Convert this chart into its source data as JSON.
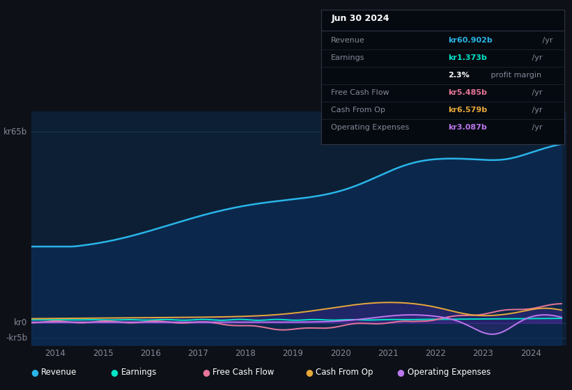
{
  "bg_color": "#0d1117",
  "chart_bg": "#0d1f35",
  "ylabel_top": "kr65b",
  "ylabel_zero": "kr0",
  "ylabel_neg": "-kr5b",
  "x_min": 2013.5,
  "x_max": 2024.75,
  "y_min": -7.5,
  "y_max": 72,
  "x_ticks": [
    2014,
    2015,
    2016,
    2017,
    2018,
    2019,
    2020,
    2021,
    2022,
    2023,
    2024
  ],
  "legend_items": [
    {
      "label": "Revenue",
      "color": "#29b5e8"
    },
    {
      "label": "Earnings",
      "color": "#00e5c8"
    },
    {
      "label": "Free Cash Flow",
      "color": "#e8759a"
    },
    {
      "label": "Cash From Op",
      "color": "#e8a838"
    },
    {
      "label": "Operating Expenses",
      "color": "#bb77ee"
    }
  ],
  "info_title": "Jun 30 2024",
  "info_rows": [
    {
      "label": "Revenue",
      "value": "kr60.902b",
      "suffix": " /yr",
      "value_color": "#29b5e8",
      "label_color": "#888899"
    },
    {
      "label": "Earnings",
      "value": "kr1.373b",
      "suffix": " /yr",
      "value_color": "#00e5c8",
      "label_color": "#888899"
    },
    {
      "label": "",
      "value": "2.3%",
      "suffix": " profit margin",
      "value_color": "#ffffff",
      "label_color": "#888899"
    },
    {
      "label": "Free Cash Flow",
      "value": "kr5.485b",
      "suffix": " /yr",
      "value_color": "#e8759a",
      "label_color": "#888899"
    },
    {
      "label": "Cash From Op",
      "value": "kr6.579b",
      "suffix": " /yr",
      "value_color": "#e8a838",
      "label_color": "#888899"
    },
    {
      "label": "Operating Expenses",
      "value": "kr3.087b",
      "suffix": " /yr",
      "value_color": "#bb77ee",
      "label_color": "#888899"
    }
  ]
}
